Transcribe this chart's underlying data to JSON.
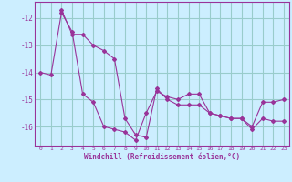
{
  "xlabel": "Windchill (Refroidissement éolien,°C)",
  "xlim": [
    -0.5,
    23.5
  ],
  "ylim": [
    -16.7,
    -11.4
  ],
  "yticks": [
    -16,
    -15,
    -14,
    -13,
    -12
  ],
  "xticks": [
    0,
    1,
    2,
    3,
    4,
    5,
    6,
    7,
    8,
    9,
    10,
    11,
    12,
    13,
    14,
    15,
    16,
    17,
    18,
    19,
    20,
    21,
    22,
    23
  ],
  "bg_color": "#cceeff",
  "grid_color": "#99cccc",
  "line_color": "#993399",
  "line1_x": [
    0,
    1,
    2,
    3,
    4,
    5,
    6,
    7,
    8,
    9,
    10,
    11,
    12,
    13,
    14,
    15,
    16,
    17,
    18,
    19,
    20,
    21,
    22,
    23
  ],
  "line1_y": [
    -14.0,
    -14.1,
    -11.8,
    -12.5,
    -14.8,
    -15.1,
    -16.0,
    -16.1,
    -16.2,
    -16.5,
    -15.5,
    -14.7,
    -14.9,
    -15.0,
    -14.8,
    -14.8,
    -15.5,
    -15.6,
    -15.7,
    -15.7,
    -16.0,
    -15.1,
    -15.1,
    -15.0
  ],
  "line2_x": [
    2,
    3,
    4,
    5,
    6,
    7,
    8,
    9,
    10,
    11,
    12,
    13,
    14,
    15,
    16,
    17,
    18,
    19,
    20,
    21,
    22,
    23
  ],
  "line2_y": [
    -11.7,
    -12.6,
    -12.6,
    -13.0,
    -13.2,
    -13.5,
    -15.7,
    -16.3,
    -16.4,
    -14.6,
    -15.0,
    -15.2,
    -15.2,
    -15.2,
    -15.5,
    -15.6,
    -15.7,
    -15.7,
    -16.1,
    -15.7,
    -15.8,
    -15.8
  ]
}
